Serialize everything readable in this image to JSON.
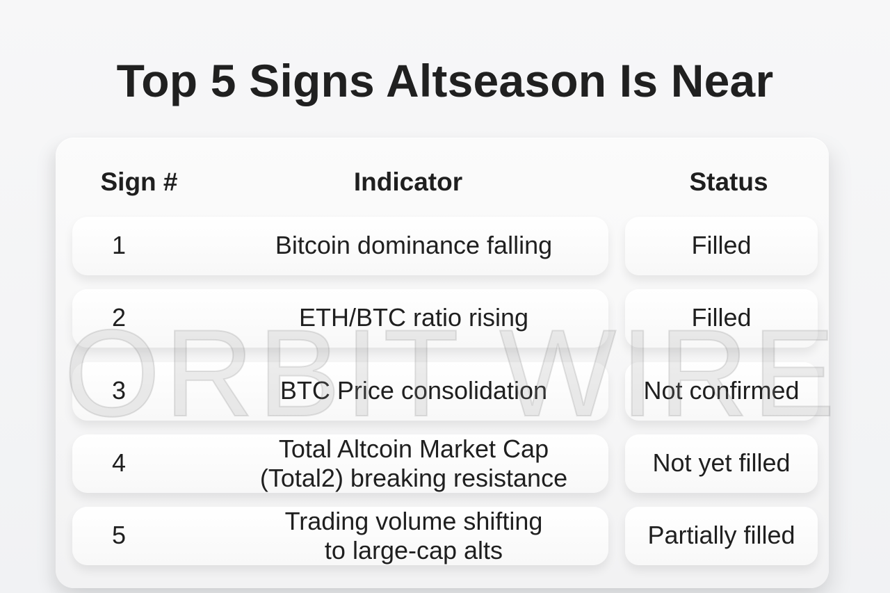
{
  "page": {
    "title": "Top 5 Signs Altseason Is Near",
    "watermark": "ORBIT WIRE"
  },
  "table": {
    "headers": {
      "sign": "Sign #",
      "indicator": "Indicator",
      "status": "Status"
    },
    "rows": [
      {
        "sign": "1",
        "indicator": "Bitcoin dominance falling",
        "status": "Filled"
      },
      {
        "sign": "2",
        "indicator": "ETH/BTC ratio rising",
        "status": "Filled"
      },
      {
        "sign": "3",
        "indicator": "BTC Price consolidation",
        "status": "Not confirmed"
      },
      {
        "sign": "4",
        "indicator": "Total Altcoin Market Cap\n(Total2) breaking resistance",
        "status": "Not yet filled"
      },
      {
        "sign": "5",
        "indicator": "Trading volume shifting\nto large-cap alts",
        "status": "Partially filled"
      }
    ]
  }
}
